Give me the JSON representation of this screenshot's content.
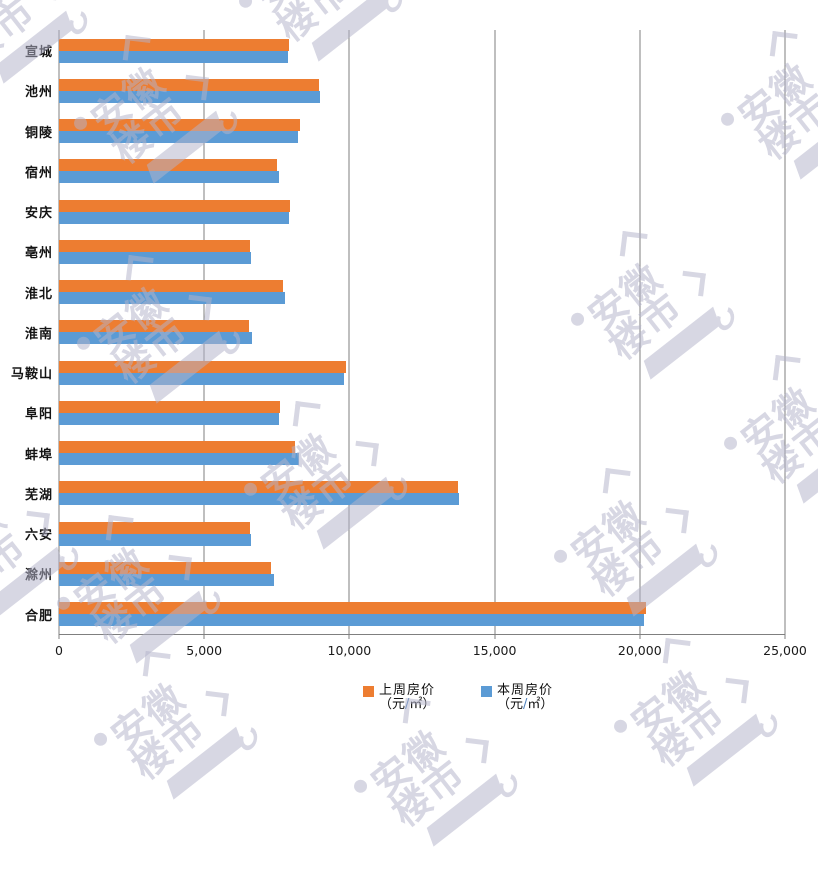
{
  "chart_data": {
    "type": "bar",
    "orientation": "horizontal",
    "categories": [
      "宣城",
      "池州",
      "铜陵",
      "宿州",
      "安庆",
      "亳州",
      "淮北",
      "淮南",
      "马鞍山",
      "阜阳",
      "蚌埠",
      "芜湖",
      "六安",
      "滁州",
      "合肥"
    ],
    "series": [
      {
        "name": "上周房价",
        "unit": "（元/㎡）",
        "color": "#ED7D31",
        "values": [
          7920,
          8950,
          8300,
          7520,
          7950,
          6560,
          7730,
          6550,
          9870,
          7600,
          8140,
          13740,
          6580,
          7290,
          20220
        ]
      },
      {
        "name": "本周房价",
        "unit": "（元/㎡）",
        "color": "#5B9BD5",
        "values": [
          7900,
          9000,
          8230,
          7560,
          7910,
          6600,
          7770,
          6640,
          9830,
          7560,
          8260,
          13770,
          6600,
          7390,
          20160
        ]
      }
    ],
    "xlim": [
      0,
      25000
    ],
    "x_tick_labels": [
      "0",
      "5,000",
      "10,000",
      "15,000",
      "20,000",
      "25,000"
    ],
    "grid": "vertical-only",
    "legend_position": "bottom",
    "title": ""
  },
  "legend": {
    "items": [
      {
        "label": "上周房价",
        "unit_pre": "（元",
        "unit_slash": "/",
        "unit_post": "㎡）",
        "color": "#ED7D31"
      },
      {
        "label": "本周房价",
        "unit_pre": "（元",
        "unit_slash": "/",
        "unit_post": "㎡）",
        "color": "#5B9BD5"
      }
    ]
  },
  "watermark": {
    "line1": "安徽",
    "line2": "楼市"
  },
  "colors": {
    "last_week_bar": "#ED7D31",
    "this_week_bar": "#5B9BD5",
    "gridline": "#7F7F7F",
    "axis_text": "#1A1A1A",
    "watermark": "#B4B4CB",
    "background": "#FFFFFF"
  }
}
